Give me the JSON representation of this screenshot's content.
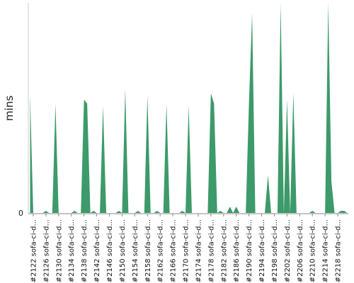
{
  "chart_data": {
    "type": "area",
    "title": "",
    "xlabel": "",
    "ylabel": "mins",
    "ytick_labels": [
      "0"
    ],
    "color": "#3d9a6a",
    "grid": false,
    "x_tick_labels": [
      "#2122 sofa-ci-d...",
      "#2126 sofa-ci-d...",
      "#2130 sofa-ci-d...",
      "#2134 sofa-ci-d...",
      "#2138 sofa-ci-d...",
      "#2142 sofa-ci-d...",
      "#2146 sofa-ci-d...",
      "#2150 sofa-ci-d...",
      "#2154 sofa-ci-d...",
      "#2158 sofa-ci-d...",
      "#2162 sofa-ci-d...",
      "#2166 sofa-ci-d...",
      "#2170 sofa-ci-d...",
      "#2174 sofa-ci-d...",
      "#2178 sofa-ci-d...",
      "#2182 sofa-ci-d...",
      "#2186 sofa-ci-d...",
      "#2190 sofa-ci-d...",
      "#2194 sofa-ci-d...",
      "#2198 sofa-ci-d...",
      "#2202 sofa-ci-d...",
      "#2206 sofa-ci-d...",
      "#2210 sofa-ci-d...",
      "#2214 sofa-ci-d...",
      "#2218 sofa-ci-d..."
    ],
    "x": [
      2121,
      2122,
      2123,
      2124,
      2125,
      2126,
      2127,
      2128,
      2129,
      2130,
      2131,
      2132,
      2133,
      2134,
      2135,
      2136,
      2137,
      2138,
      2139,
      2140,
      2141,
      2142,
      2143,
      2144,
      2145,
      2146,
      2147,
      2148,
      2149,
      2150,
      2151,
      2152,
      2153,
      2154,
      2155,
      2156,
      2157,
      2158,
      2159,
      2160,
      2161,
      2162,
      2163,
      2164,
      2165,
      2166,
      2167,
      2168,
      2169,
      2170,
      2171,
      2172,
      2173,
      2174,
      2175,
      2176,
      2177,
      2178,
      2179,
      2180,
      2181,
      2182,
      2183,
      2184,
      2185,
      2186,
      2187,
      2188,
      2189,
      2190,
      2191,
      2192,
      2193,
      2194,
      2195,
      2196,
      2197,
      2198,
      2199,
      2200,
      2201,
      2202,
      2203,
      2204,
      2205,
      2206,
      2207,
      2208,
      2209,
      2210,
      2211,
      2212,
      2213,
      2214,
      2215,
      2216,
      2217,
      2218,
      2219,
      2220,
      2221
    ],
    "values": [
      56,
      0,
      0,
      0,
      0,
      1,
      0,
      0,
      52,
      0,
      0,
      0,
      0,
      0,
      1,
      0,
      0,
      54,
      52,
      0,
      1,
      0,
      0,
      51,
      0,
      0,
      0,
      0,
      1,
      0,
      59,
      0,
      0,
      0,
      1,
      0,
      0,
      56,
      0,
      0,
      1,
      0,
      0,
      52,
      0,
      0,
      0,
      0,
      1,
      0,
      51,
      0,
      0,
      0,
      0,
      0,
      0,
      57,
      52,
      0,
      1,
      0,
      0,
      3,
      0,
      3,
      0,
      0,
      0,
      52,
      95,
      0,
      0,
      0,
      0,
      18,
      0,
      0,
      0,
      100,
      0,
      54,
      0,
      57,
      0,
      0,
      0,
      0,
      0,
      1,
      0,
      0,
      0,
      0,
      100,
      15,
      0,
      0,
      1,
      1,
      0
    ]
  }
}
